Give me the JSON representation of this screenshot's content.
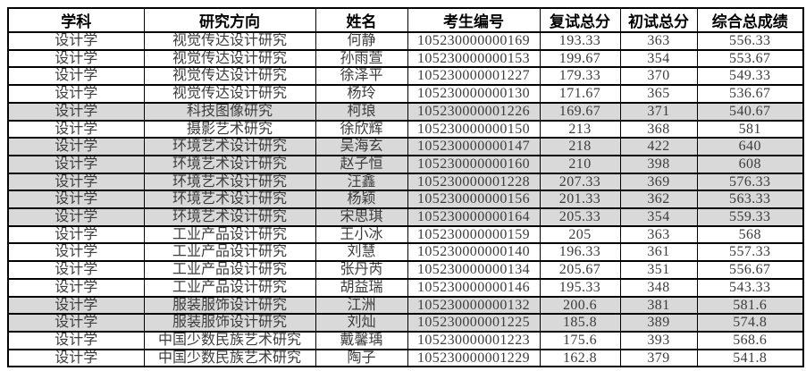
{
  "page": {
    "background": "#ffffff"
  },
  "table": {
    "columns": [
      {
        "key": "subject",
        "label": "学科"
      },
      {
        "key": "direction",
        "label": "研究方向"
      },
      {
        "key": "name",
        "label": "姓名"
      },
      {
        "key": "candidate_no",
        "label": "考生编号"
      },
      {
        "key": "retest_score",
        "label": "复试总分"
      },
      {
        "key": "initial_score",
        "label": "初试总分"
      },
      {
        "key": "total_score",
        "label": "综合总成绩"
      }
    ],
    "rows": [
      {
        "subject": "设计学",
        "direction": "视觉传达设计研究",
        "name": "何静",
        "candidate_no": "105230000000169",
        "retest_score": "193.33",
        "initial_score": "363",
        "total_score": "556.33",
        "highlighted": false
      },
      {
        "subject": "设计学",
        "direction": "视觉传达设计研究",
        "name": "孙雨萱",
        "candidate_no": "105230000000153",
        "retest_score": "199.67",
        "initial_score": "354",
        "total_score": "553.67",
        "highlighted": false
      },
      {
        "subject": "设计学",
        "direction": "视觉传达设计研究",
        "name": "徐泽平",
        "candidate_no": "105230000001227",
        "retest_score": "179.33",
        "initial_score": "370",
        "total_score": "549.33",
        "highlighted": false
      },
      {
        "subject": "设计学",
        "direction": "视觉传达设计研究",
        "name": "杨玲",
        "candidate_no": "105230000000130",
        "retest_score": "171.67",
        "initial_score": "365",
        "total_score": "536.67",
        "highlighted": false
      },
      {
        "subject": "设计学",
        "direction": "科技图像研究",
        "name": "柯琅",
        "candidate_no": "105230000001226",
        "retest_score": "169.67",
        "initial_score": "371",
        "total_score": "540.67",
        "highlighted": true
      },
      {
        "subject": "设计学",
        "direction": "摄影艺术研究",
        "name": "徐欣辉",
        "candidate_no": "105230000000150",
        "retest_score": "213",
        "initial_score": "368",
        "total_score": "581",
        "highlighted": false
      },
      {
        "subject": "设计学",
        "direction": "环境艺术设计研究",
        "name": "吴海玄",
        "candidate_no": "105230000000147",
        "retest_score": "218",
        "initial_score": "422",
        "total_score": "640",
        "highlighted": true
      },
      {
        "subject": "设计学",
        "direction": "环境艺术设计研究",
        "name": "赵子恒",
        "candidate_no": "105230000000160",
        "retest_score": "210",
        "initial_score": "398",
        "total_score": "608",
        "highlighted": true
      },
      {
        "subject": "设计学",
        "direction": "环境艺术设计研究",
        "name": "汪鑫",
        "candidate_no": "105230000001228",
        "retest_score": "207.33",
        "initial_score": "369",
        "total_score": "576.33",
        "highlighted": true
      },
      {
        "subject": "设计学",
        "direction": "环境艺术设计研究",
        "name": "杨颖",
        "candidate_no": "105230000000156",
        "retest_score": "201.33",
        "initial_score": "362",
        "total_score": "563.33",
        "highlighted": true
      },
      {
        "subject": "设计学",
        "direction": "环境艺术设计研究",
        "name": "宋思琪",
        "candidate_no": "105230000000164",
        "retest_score": "205.33",
        "initial_score": "354",
        "total_score": "559.33",
        "highlighted": true
      },
      {
        "subject": "设计学",
        "direction": "工业产品设计研究",
        "name": "王小冰",
        "candidate_no": "105230000000159",
        "retest_score": "205",
        "initial_score": "363",
        "total_score": "568",
        "highlighted": false
      },
      {
        "subject": "设计学",
        "direction": "工业产品设计研究",
        "name": "刘慧",
        "candidate_no": "105230000000140",
        "retest_score": "196.33",
        "initial_score": "361",
        "total_score": "557.33",
        "highlighted": false
      },
      {
        "subject": "设计学",
        "direction": "工业产品设计研究",
        "name": "张丹芮",
        "candidate_no": "105230000000134",
        "retest_score": "205.67",
        "initial_score": "351",
        "total_score": "556.67",
        "highlighted": false
      },
      {
        "subject": "设计学",
        "direction": "工业产品设计研究",
        "name": "胡益瑞",
        "candidate_no": "105230000000146",
        "retest_score": "195.33",
        "initial_score": "348",
        "total_score": "543.33",
        "highlighted": false
      },
      {
        "subject": "设计学",
        "direction": "服装服饰设计研究",
        "name": "江洲",
        "candidate_no": "105230000000132",
        "retest_score": "200.6",
        "initial_score": "381",
        "total_score": "581.6",
        "highlighted": true
      },
      {
        "subject": "设计学",
        "direction": "服装服饰设计研究",
        "name": "刘灿",
        "candidate_no": "105230000001225",
        "retest_score": "185.8",
        "initial_score": "389",
        "total_score": "574.8",
        "highlighted": true
      },
      {
        "subject": "设计学",
        "direction": "中国少数民族艺术研究",
        "name": "戴馨瑀",
        "candidate_no": "105230000001223",
        "retest_score": "175.6",
        "initial_score": "393",
        "total_score": "568.6",
        "highlighted": false
      },
      {
        "subject": "设计学",
        "direction": "中国少数民族艺术研究",
        "name": "陶子",
        "candidate_no": "105230000001229",
        "retest_score": "162.8",
        "initial_score": "379",
        "total_score": "541.8",
        "highlighted": false
      }
    ],
    "colors": {
      "highlight_row_bg": "#d9d9d9",
      "border": "#000000",
      "header_text": "#000000",
      "body_text": "#3d3d3d"
    }
  }
}
